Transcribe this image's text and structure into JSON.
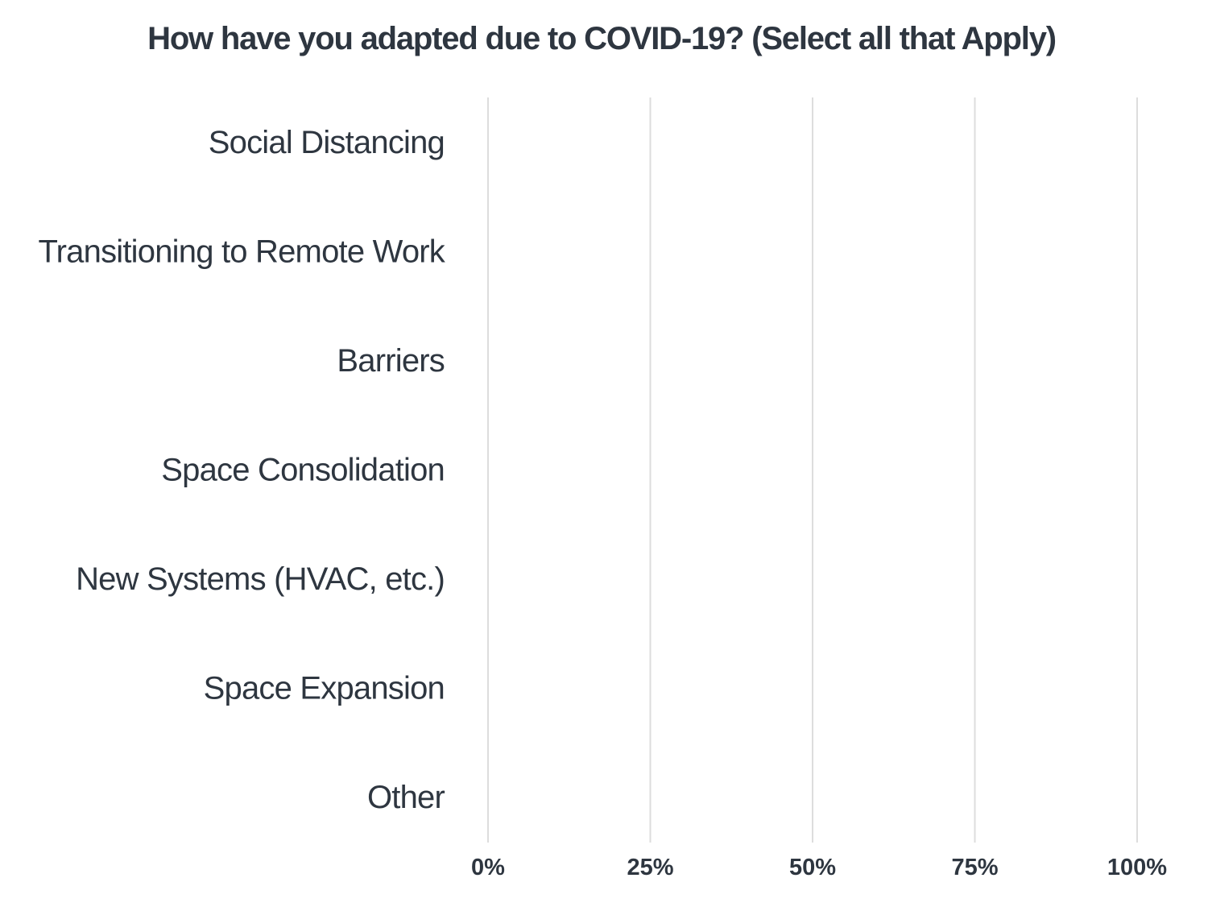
{
  "chart_data": {
    "type": "bar",
    "orientation": "horizontal",
    "title": "How have you adapted due to COVID-19? (Select all that Apply)",
    "categories": [
      "Social Distancing",
      "Transitioning to Remote Work",
      "Barriers",
      "Space Consolidation",
      "New Systems (HVAC, etc.)",
      "Space Expansion",
      "Other"
    ],
    "values": [
      0,
      0,
      0,
      0,
      0,
      0,
      0
    ],
    "xlim": [
      0,
      100
    ],
    "x_ticks": [
      "0%",
      "25%",
      "50%",
      "75%",
      "100%"
    ],
    "x_tick_values": [
      0,
      25,
      50,
      75,
      100
    ],
    "grid": true,
    "legend": "none",
    "colors": {
      "text": "#2e3640",
      "grid": "#dddddd"
    }
  }
}
